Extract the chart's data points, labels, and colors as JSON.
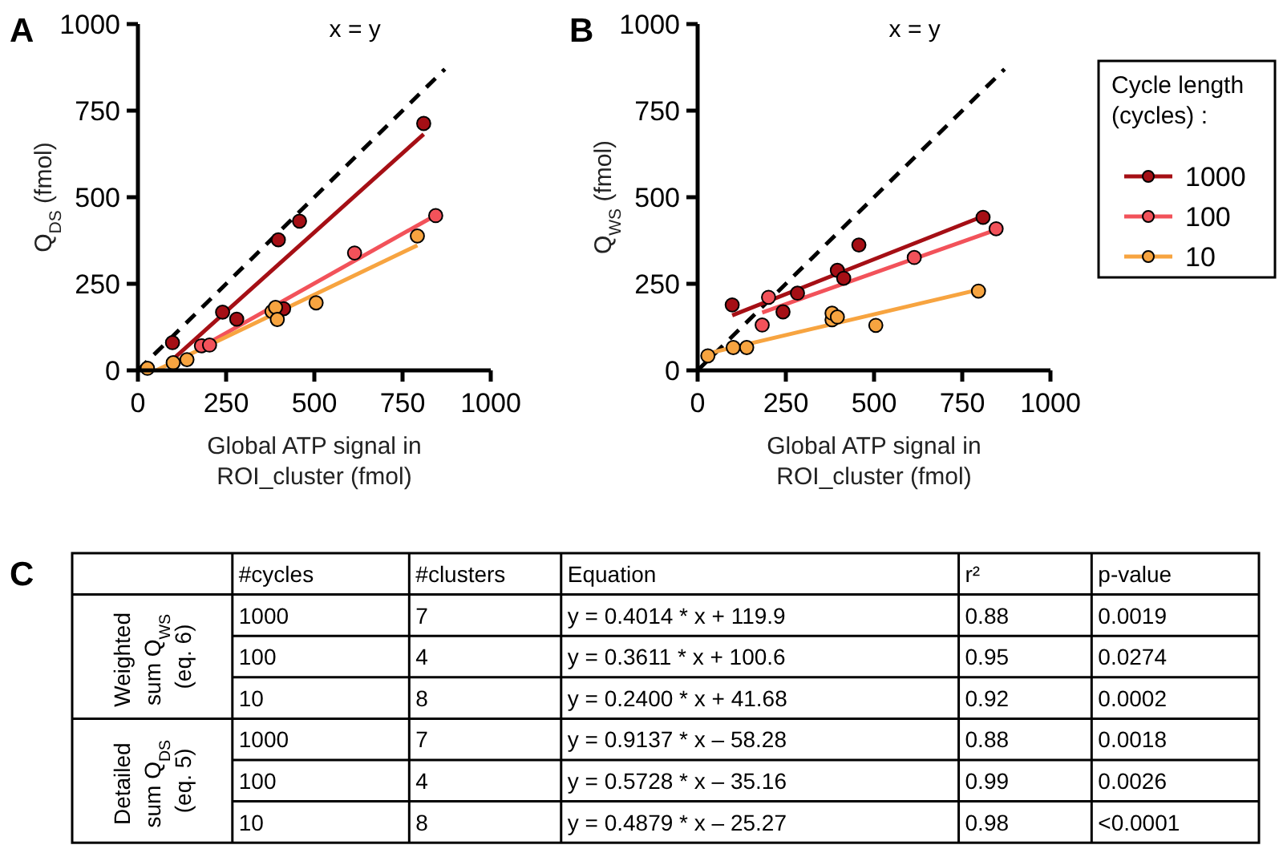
{
  "chart_data": [
    {
      "type": "scatter",
      "title": "A",
      "xlabel": "Global ATP signal in ROI_cluster (fmol)",
      "ylabel": "Q$_{DS}$ (fmol)",
      "xlim": [
        0,
        1000
      ],
      "ylim": [
        0,
        1000
      ],
      "xticks": [
        0,
        250,
        500,
        750,
        1000
      ],
      "yticks": [
        0,
        250,
        500,
        750,
        1000
      ],
      "grid": false,
      "legend": false,
      "series": [
        {
          "name": "x = y",
          "type": "line",
          "line_style": "dashed",
          "color": "#000000",
          "x": [
            0,
            870
          ],
          "values": [
            0,
            870
          ]
        },
        {
          "type": "line",
          "color": "#a50f15",
          "x": [
            98,
            810
          ],
          "values": [
            31,
            682
          ]
        },
        {
          "type": "line",
          "color": "#f2525a",
          "x": [
            180,
            844
          ],
          "values": [
            68,
            448
          ]
        },
        {
          "type": "line",
          "color": "#f7a440",
          "x": [
            52,
            792
          ],
          "values": [
            0,
            361
          ]
        },
        {
          "type": "scatter",
          "marker": "circle",
          "color": "#a50f15",
          "x": [
            98,
            240,
            280,
            398,
            413,
            458,
            810
          ],
          "values": [
            80,
            168,
            148,
            377,
            178,
            431,
            713
          ]
        },
        {
          "type": "scatter",
          "marker": "circle",
          "color": "#f2525a",
          "x": [
            180,
            203,
            614,
            844
          ],
          "values": [
            71,
            73,
            339,
            447
          ]
        },
        {
          "type": "scatter",
          "marker": "circle",
          "color": "#f7a440",
          "x": [
            27,
            100,
            139,
            380,
            390,
            395,
            505,
            792
          ],
          "values": [
            6,
            22,
            31,
            170,
            182,
            147,
            195,
            388
          ]
        }
      ]
    },
    {
      "type": "scatter",
      "title": "B",
      "xlabel": "Global ATP signal in ROI_cluster (fmol)",
      "ylabel": "Q$_{WS}$ (fmol)",
      "legend_title": "Cycle length (cycles) :",
      "xlim": [
        0,
        1000
      ],
      "ylim": [
        0,
        1000
      ],
      "xticks": [
        0,
        250,
        500,
        750,
        1000
      ],
      "yticks": [
        0,
        250,
        500,
        750,
        1000
      ],
      "grid": false,
      "legend": "right",
      "series": [
        {
          "name": "x = y",
          "type": "line",
          "line_style": "dashed",
          "color": "#000000",
          "x": [
            0,
            870
          ],
          "values": [
            0,
            870
          ]
        },
        {
          "type": "line",
          "color": "#a50f15",
          "x": [
            98,
            809
          ],
          "values": [
            159,
            445
          ]
        },
        {
          "type": "line",
          "color": "#f2525a",
          "x": [
            183,
            846
          ],
          "values": [
            167,
            406
          ]
        },
        {
          "type": "line",
          "color": "#f7a440",
          "x": [
            29,
            796
          ],
          "values": [
            49,
            233
          ]
        },
        {
          "name": "1000",
          "type": "scatter",
          "marker": "circle",
          "color": "#a50f15",
          "x": [
            98,
            242,
            283,
            396,
            414,
            457,
            809
          ],
          "values": [
            189,
            169,
            223,
            289,
            266,
            362,
            442
          ]
        },
        {
          "name": "100",
          "type": "scatter",
          "marker": "circle",
          "color": "#f2525a",
          "x": [
            183,
            201,
            614,
            846
          ],
          "values": [
            131,
            211,
            326,
            409
          ]
        },
        {
          "name": "10",
          "type": "scatter",
          "marker": "circle",
          "color": "#f7a440",
          "x": [
            29,
            101,
            139,
            381,
            381,
            396,
            505,
            796
          ],
          "values": [
            42,
            66,
            66,
            146,
            165,
            154,
            130,
            229
          ]
        }
      ]
    },
    {
      "type": "other",
      "title": "C",
      "categories": [
        null,
        "#cycles",
        "#clusters",
        "Equation",
        "r²",
        "p-value"
      ],
      "y_categories": [
        "Weighted sum Q$_{WS}$ (eq. 6)",
        "Detailed sum Q$_{DS}$ (eq. 5)"
      ],
      "cell_labels": [
        [
          "1000",
          "7",
          "y = 0.4014 * x + 119.9",
          "0.88",
          "0.0019"
        ],
        [
          "100",
          "4",
          "y = 0.3611 * x + 100.6",
          "0.95",
          "0.0274"
        ],
        [
          "10",
          "8",
          "y = 0.2400 * x + 41.68",
          "0.92",
          "0.0002"
        ],
        [
          "1000",
          "7",
          "y = 0.9137 * x – 58.28",
          "0.88",
          "0.0018"
        ],
        [
          "100",
          "4",
          "y = 0.5728 * x – 35.16",
          "0.99",
          "0.0026"
        ],
        [
          "10",
          "8",
          "y = 0.4879 * x – 25.27",
          "0.98",
          "<0.0001"
        ]
      ]
    }
  ]
}
